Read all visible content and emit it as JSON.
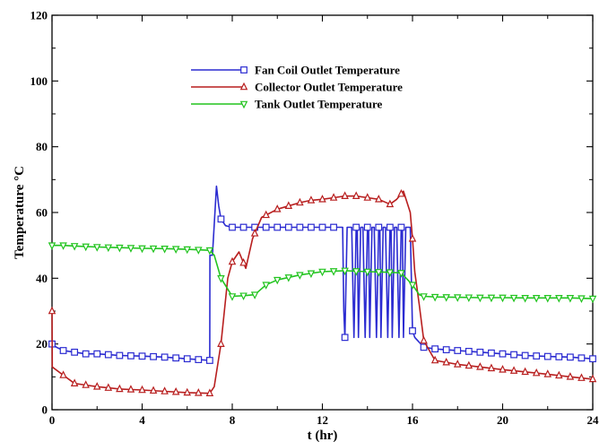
{
  "chart_data": {
    "type": "line",
    "title": "",
    "xlabel": "t (hr)",
    "ylabel": "Temperature °C",
    "xlim": [
      0,
      24
    ],
    "ylim": [
      0,
      120
    ],
    "xticks": [
      0,
      4,
      8,
      12,
      16,
      20,
      24
    ],
    "yticks": [
      0,
      20,
      40,
      60,
      80,
      100,
      120
    ],
    "grid": false,
    "legend_position": "top-center",
    "series": [
      {
        "name": "Fan Coil Outlet Temperature",
        "color": "#2b2bd1",
        "marker": "square",
        "x": [
          0,
          0.2,
          0.5,
          1,
          1.5,
          2,
          3,
          4,
          5,
          6,
          7,
          7.01,
          7.1,
          7.12,
          7.3,
          7.4,
          7.5,
          7.7,
          8,
          8.5,
          9,
          10,
          11,
          12,
          12.9,
          12.95,
          13.0,
          13.1,
          13.2,
          13.3,
          13.4,
          13.5,
          13.55,
          13.6,
          13.7,
          13.8,
          13.9,
          14.0,
          14.05,
          14.1,
          14.2,
          14.3,
          14.4,
          14.5,
          14.55,
          14.6,
          14.7,
          14.8,
          14.9,
          15.0,
          15.05,
          15.1,
          15.2,
          15.3,
          15.4,
          15.5,
          15.55,
          15.6,
          15.7,
          15.8,
          15.9,
          16.0,
          16.1,
          16.5,
          17,
          18,
          19,
          20,
          21,
          22,
          23,
          24
        ],
        "y": [
          20,
          19,
          18,
          17.5,
          17,
          17,
          16.5,
          16.3,
          16,
          15.5,
          15,
          47,
          47,
          47,
          68,
          62,
          58,
          56,
          55.5,
          55.5,
          55.5,
          55.5,
          55.5,
          55.5,
          55.5,
          30,
          22,
          55.5,
          55.5,
          55.5,
          22,
          55.5,
          55.5,
          22,
          55.5,
          55.5,
          22,
          55.5,
          55.5,
          22,
          55.5,
          55.5,
          22,
          55.5,
          55.5,
          22,
          55.5,
          55.5,
          22,
          55.5,
          55.5,
          22,
          55.5,
          55.5,
          22,
          55.5,
          55.5,
          22,
          55.5,
          55.5,
          55.5,
          24,
          22,
          19,
          18.5,
          18,
          17.5,
          17,
          16.5,
          16.2,
          16,
          15.5
        ]
      },
      {
        "name": "Collector Outlet Temperature",
        "color": "#b81f1f",
        "marker": "triangle-up",
        "x": [
          0,
          0.01,
          0.5,
          1,
          1.5,
          2,
          3,
          4,
          5,
          6,
          7,
          7.2,
          7.5,
          7.8,
          8,
          8.3,
          8.6,
          8.9,
          9.3,
          10,
          10.5,
          11,
          11.5,
          12,
          12.5,
          13,
          13.5,
          14,
          14.5,
          15,
          15.3,
          15.6,
          15.9,
          16.0,
          16.1,
          16.3,
          16.5,
          17,
          18,
          19,
          20,
          21,
          22,
          23,
          24
        ],
        "y": [
          30,
          13,
          10.5,
          8,
          7.5,
          7,
          6.3,
          6,
          5.6,
          5.2,
          5,
          7,
          20,
          40,
          45,
          48,
          43,
          52,
          58.5,
          61,
          62,
          63,
          63.7,
          64,
          64.5,
          65,
          65,
          64.5,
          64,
          62.5,
          64,
          66.5,
          60,
          52,
          42,
          32,
          21,
          15,
          13.8,
          13,
          12.2,
          11.5,
          10.8,
          10,
          9.3
        ]
      },
      {
        "name": "Tank Outlet Temperature",
        "color": "#22c41f",
        "marker": "triangle-down",
        "x": [
          0,
          0.5,
          1,
          2,
          3,
          4,
          5,
          6,
          7,
          7.2,
          7.5,
          8,
          8.5,
          9,
          9.5,
          10,
          11,
          12,
          13,
          14,
          15,
          15.5,
          16,
          16.3,
          16.5,
          17,
          18,
          19,
          20,
          21,
          22,
          23,
          24
        ],
        "y": [
          50,
          50,
          49.8,
          49.5,
          49.3,
          49.1,
          49,
          48.8,
          48.5,
          47,
          40,
          34.5,
          34.7,
          35,
          38,
          39.5,
          41,
          42,
          42.3,
          42,
          41.8,
          41.6,
          38,
          35,
          34.5,
          34.3,
          34.2,
          34.1,
          34.1,
          34,
          34,
          34,
          33.8
        ]
      }
    ]
  }
}
